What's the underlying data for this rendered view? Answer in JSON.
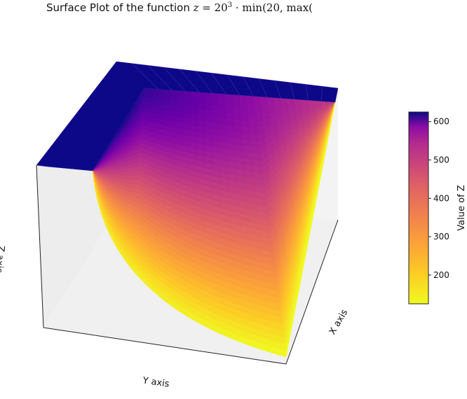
{
  "chart_data": {
    "type": "surface",
    "title_prefix": "Surface Plot of the function ",
    "title_math": {
      "var": "z",
      "eq": " = 20",
      "exp": "3",
      "rest": " · min(20, max("
    },
    "xlabel": "X axis",
    "ylabel": "Y axis",
    "zlabel": "Z axis",
    "colorbar": {
      "label": "Value of Z",
      "ticks": [
        200,
        300,
        400,
        500,
        600
      ],
      "range": [
        125,
        625
      ],
      "colormap": "plasma"
    },
    "surface": {
      "z_cap": 625,
      "z_min_visible": 125,
      "description_values": {
        "plateau_value": 625,
        "min_corner_value": 125
      }
    },
    "grid": true
  }
}
